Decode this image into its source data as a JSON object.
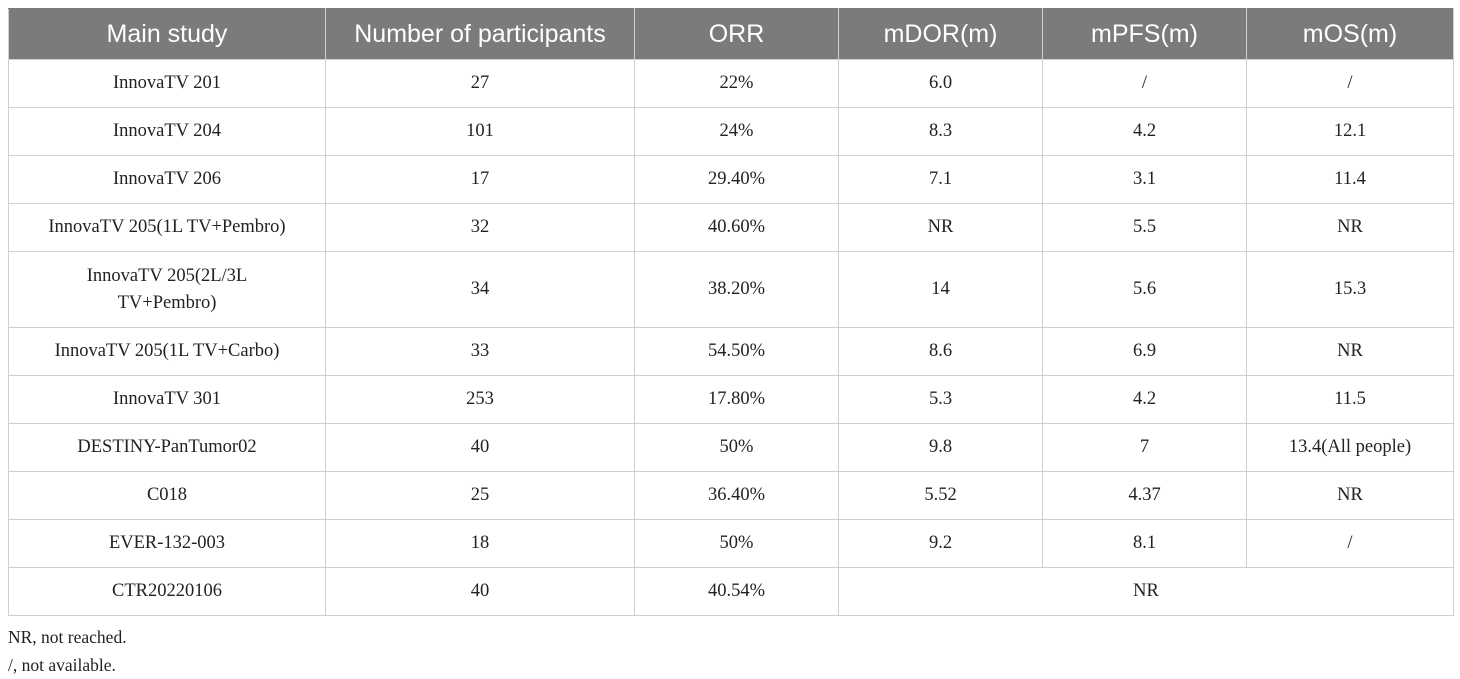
{
  "table": {
    "headers": [
      "Main study",
      "Number of participants",
      "ORR",
      "mDOR(m)",
      "mPFS(m)",
      "mOS(m)"
    ],
    "rows": [
      {
        "study": "InnovaTV 201",
        "participants": "27",
        "orr": "22%",
        "mdor": "6.0",
        "mpfs": "/",
        "mos": "/"
      },
      {
        "study": "InnovaTV 204",
        "participants": "101",
        "orr": "24%",
        "mdor": "8.3",
        "mpfs": "4.2",
        "mos": "12.1"
      },
      {
        "study": "InnovaTV 206",
        "participants": "17",
        "orr": "29.40%",
        "mdor": "7.1",
        "mpfs": "3.1",
        "mos": "11.4"
      },
      {
        "study": "InnovaTV 205(1L TV+Pembro)",
        "participants": "32",
        "orr": "40.60%",
        "mdor": "NR",
        "mpfs": "5.5",
        "mos": "NR"
      },
      {
        "study_line1": "InnovaTV 205(2L/3L",
        "study_line2": "TV+Pembro)",
        "participants": "34",
        "orr": "38.20%",
        "mdor": "14",
        "mpfs": "5.6",
        "mos": "15.3"
      },
      {
        "study": "InnovaTV 205(1L TV+Carbo)",
        "participants": "33",
        "orr": "54.50%",
        "mdor": "8.6",
        "mpfs": "6.9",
        "mos": "NR"
      },
      {
        "study": "InnovaTV 301",
        "participants": "253",
        "orr": "17.80%",
        "mdor": "5.3",
        "mpfs": "4.2",
        "mos": "11.5"
      },
      {
        "study": "DESTINY-PanTumor02",
        "participants": "40",
        "orr": "50%",
        "mdor": "9.8",
        "mpfs": "7",
        "mos": "13.4(All people)"
      },
      {
        "study": "C018",
        "participants": "25",
        "orr": "36.40%",
        "mdor": "5.52",
        "mpfs": "4.37",
        "mos": "NR"
      },
      {
        "study": "EVER-132-003",
        "participants": "18",
        "orr": "50%",
        "mdor": "9.2",
        "mpfs": "8.1",
        "mos": "/"
      },
      {
        "study": "CTR20220106",
        "participants": "40",
        "orr": "40.54%",
        "merged": "NR"
      }
    ]
  },
  "footnotes": [
    "NR, not reached.",
    "/, not available."
  ]
}
